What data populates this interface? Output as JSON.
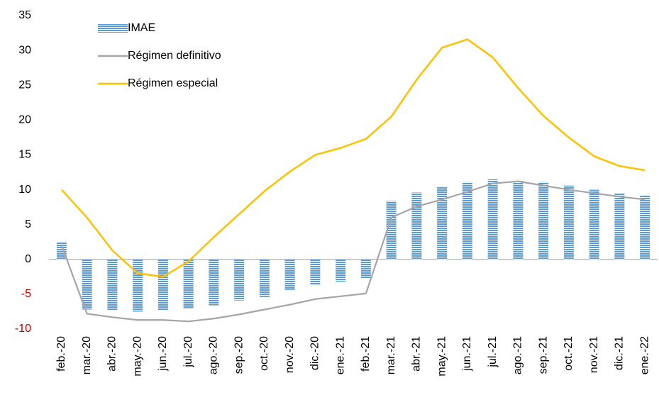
{
  "chart_data": {
    "type": "bar_line",
    "categories": [
      "feb.-20",
      "mar.-20",
      "abr.-20",
      "may.-20",
      "jun.-20",
      "jul.-20",
      "ago.-20",
      "sep.-20",
      "oct.-20",
      "nov.-20",
      "dic.-20",
      "ene.-21",
      "feb.-21",
      "mar.-21",
      "abr.-21",
      "may.-21",
      "jun.-21",
      "jul.-21",
      "ago.-21",
      "sep.-21",
      "oct.-21",
      "nov.-21",
      "dic.-21",
      "ene.-22"
    ],
    "series": [
      {
        "name": "IMAE",
        "type": "bar",
        "color": "#5b9bd5",
        "values": [
          2.5,
          -7.2,
          -7.3,
          -7.5,
          -7.3,
          -7.1,
          -6.6,
          -5.9,
          -5.4,
          -4.4,
          -3.7,
          -3.2,
          -2.7,
          8.4,
          9.6,
          10.4,
          11.1,
          11.5,
          11.4,
          11.1,
          10.6,
          10.0,
          9.5,
          9.2
        ]
      },
      {
        "name": "Régimen definitivo",
        "type": "line",
        "color": "#a5a5a5",
        "values": [
          2.0,
          -7.8,
          -8.3,
          -8.7,
          -8.7,
          -8.9,
          -8.5,
          -7.9,
          -7.2,
          -6.5,
          -5.7,
          -5.3,
          -4.9,
          6.0,
          7.6,
          8.6,
          9.7,
          10.9,
          11.2,
          10.6,
          10.0,
          9.5,
          9.0,
          8.6
        ]
      },
      {
        "name": "Régimen especial",
        "type": "line",
        "color": "#ffc000",
        "values": [
          10.0,
          6.0,
          1.3,
          -2.0,
          -2.5,
          -0.3,
          3.2,
          6.5,
          9.8,
          12.6,
          15.0,
          16.0,
          17.3,
          20.5,
          25.8,
          30.4,
          31.6,
          29.0,
          24.6,
          20.6,
          17.5,
          14.8,
          13.4,
          12.8
        ]
      }
    ],
    "ylim": [
      -10,
      35
    ],
    "yticks": [
      -10,
      -5,
      0,
      5,
      10,
      15,
      20,
      25,
      30,
      35
    ],
    "negative_tick_color": "#c00000",
    "grid": false
  }
}
